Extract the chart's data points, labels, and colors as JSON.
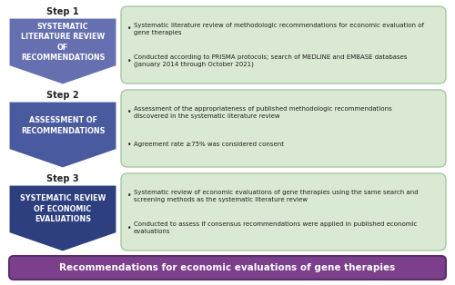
{
  "steps": [
    {
      "step_label": "Step 1",
      "arrow_title": "SYSTEMATIC\nLITERATURE REVIEW\nOF\nRECOMMENDATIONS",
      "arrow_color": "#6670B0",
      "box_color": "#D9E9D3",
      "box_border": "#A8C8A0",
      "bullets": [
        "Systematic literature review of methodologic recommendations for economic evaluation of\ngene therapies",
        "Conducted according to PRISMA protocols; search of MEDLINE and EMBASE databases\n(January 2014 through October 2021)"
      ]
    },
    {
      "step_label": "Step 2",
      "arrow_title": "ASSESSMENT OF\nRECOMMENDATIONS",
      "arrow_color": "#4A5A9E",
      "box_color": "#D9E9D3",
      "box_border": "#A8C8A0",
      "bullets": [
        "Assessment of the appropriateness of published methodologic recommendations\ndiscovered in the systematic literature review",
        "Agreement rate ≥75% was considered consent"
      ]
    },
    {
      "step_label": "Step 3",
      "arrow_title": "SYSTEMATIC REVIEW\nOF ECONOMIC\nEVALUATIONS",
      "arrow_color": "#2E3F80",
      "box_color": "#D9E9D3",
      "box_border": "#A8C8A0",
      "bullets": [
        "Systematic review of economic evaluations of gene therapies using the same search and\nscreening methods as the systematic literature review",
        "Conducted to assess if consensus recommendations were applied in published economic\nevaluations"
      ]
    }
  ],
  "footer_text": "Recommendations for economic evaluations of gene therapies",
  "footer_bg": "#7B3F8C",
  "footer_border": "#5A2E6E",
  "footer_text_color": "#FFFFFF",
  "bg_color": "#FFFFFF",
  "step_label_color": "#222222",
  "bullet_color": "#222222"
}
